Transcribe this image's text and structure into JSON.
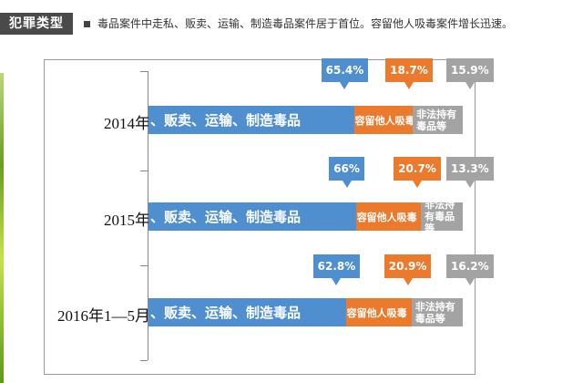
{
  "header": {
    "tag": "犯罪类型",
    "note": "毒品案件中走私、贩卖、运输、制造毒品案件居于首位。容留他人吸毒案件增长迅速。"
  },
  "chart_data": {
    "type": "bar",
    "stacked": true,
    "orientation": "horizontal",
    "categories": [
      "2014年",
      "2015年",
      "2016年1—5月"
    ],
    "series": [
      {
        "name": "、贩卖、运输、制造毒品",
        "color": "#4f8fd0",
        "values": [
          65.4,
          66,
          62.8
        ],
        "labels": [
          "65.4%",
          "66%",
          "62.8%"
        ]
      },
      {
        "name": "容留他人吸毒",
        "color": "#ec7a2c",
        "values": [
          18.7,
          20.7,
          20.9
        ],
        "labels": [
          "18.7%",
          "20.7%",
          "20.9%"
        ]
      },
      {
        "name": "非法持有毒品等",
        "color": "#a3a3a3",
        "values": [
          15.9,
          13.3,
          16.2
        ],
        "labels": [
          "15.9%",
          "13.3%",
          "16.2%"
        ]
      }
    ],
    "xlim": [
      0,
      100
    ]
  }
}
